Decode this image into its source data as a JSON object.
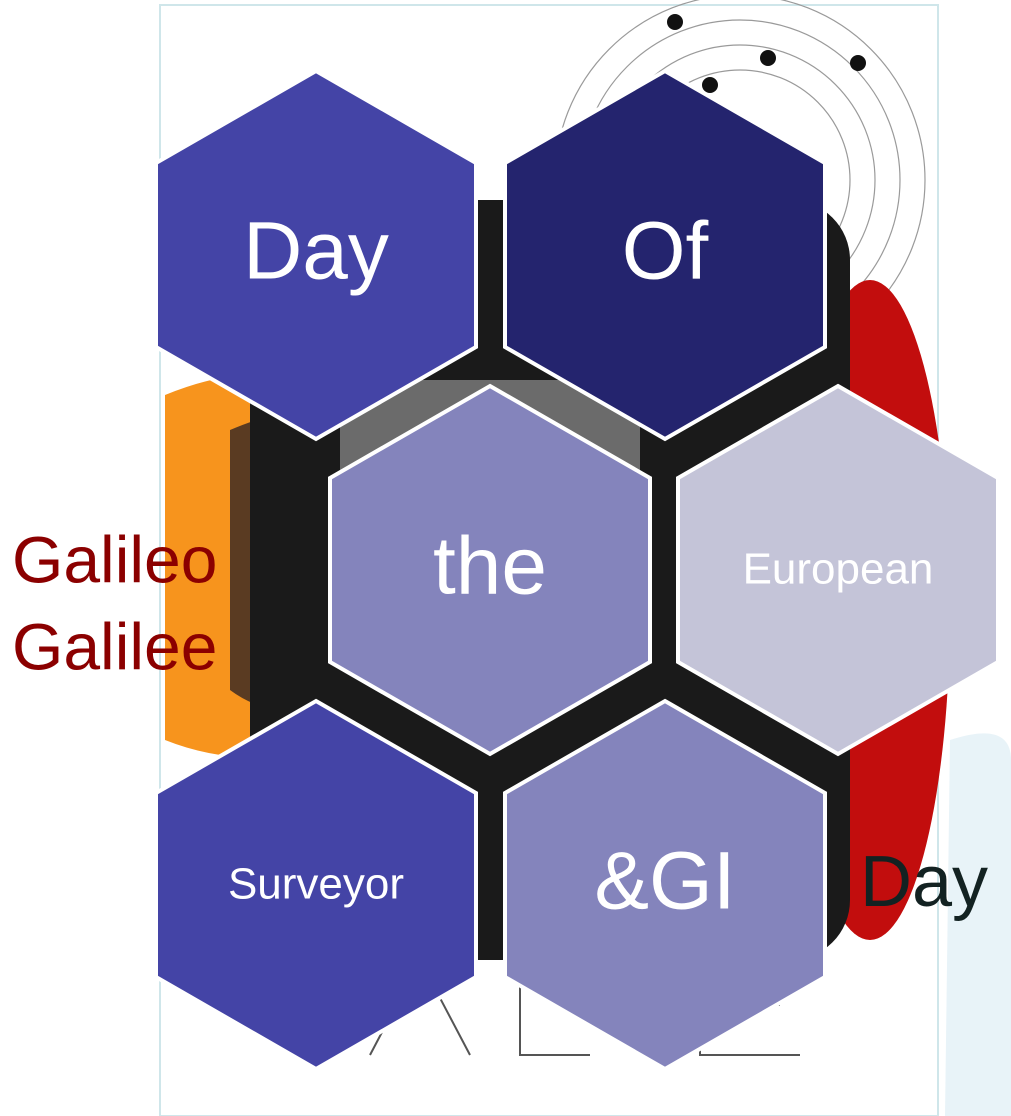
{
  "poster": {
    "hexagons": [
      {
        "label": "Day"
      },
      {
        "label": "Of"
      },
      {
        "label": "the"
      },
      {
        "label": "European"
      },
      {
        "label": "Surveyor"
      },
      {
        "label": "&GI"
      }
    ],
    "side_title": [
      "Galileo",
      "Galilee"
    ],
    "side_label": "Day"
  }
}
